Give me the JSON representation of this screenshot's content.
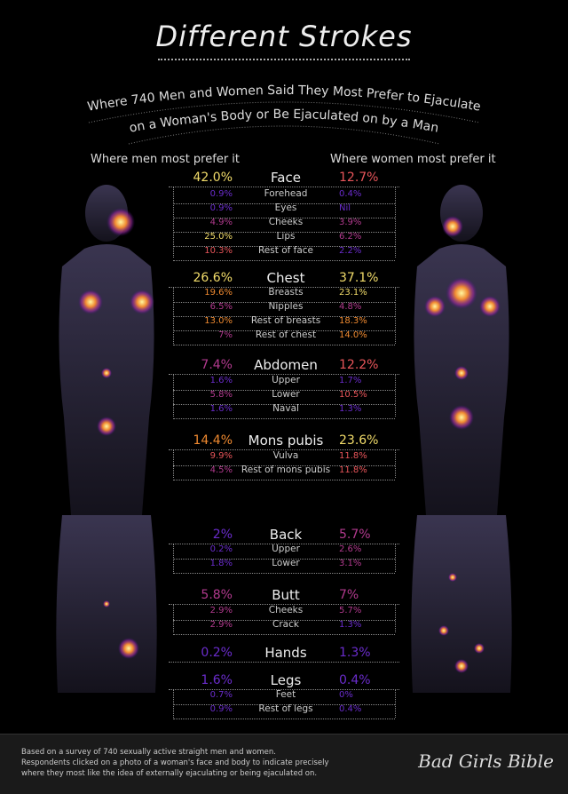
{
  "header": {
    "title": "Different Strokes",
    "subtitle_line1": "Where 740 Men and Women Said They Most Prefer to Ejaculate",
    "subtitle_line2": "on a Woman's Body or Be Ejaculated on by a Man"
  },
  "columns": {
    "men": "Where men most prefer it",
    "women": "Where women most prefer it"
  },
  "colors": {
    "low": "#6a2ccc",
    "mid": "#b23a8e",
    "high": "#e8555a",
    "higher": "#f08a30",
    "top": "#f2dc6a"
  },
  "chart_data": {
    "type": "table",
    "series": [
      {
        "name": "Where men most prefer it"
      },
      {
        "name": "Where women most prefer it"
      }
    ],
    "sections": [
      {
        "name": "Face",
        "men": "42.0%",
        "women": "12.7%",
        "sub": [
          {
            "label": "Forehead",
            "men": "0.9%",
            "women": "0.4%"
          },
          {
            "label": "Eyes",
            "men": "0.9%",
            "women": "Nil"
          },
          {
            "label": "Cheeks",
            "men": "4.9%",
            "women": "3.9%"
          },
          {
            "label": "Lips",
            "men": "25.0%",
            "women": "6.2%"
          },
          {
            "label": "Rest of face",
            "men": "10.3%",
            "women": "2.2%"
          }
        ]
      },
      {
        "name": "Chest",
        "men": "26.6%",
        "women": "37.1%",
        "sub": [
          {
            "label": "Breasts",
            "men": "19.6%",
            "women": "23.1%"
          },
          {
            "label": "Nipples",
            "men": "6.5%",
            "women": "4.8%"
          },
          {
            "label": "Rest of breasts",
            "men": "13.0%",
            "women": "18.3%"
          },
          {
            "label": "Rest of chest",
            "men": "7%",
            "women": "14.0%"
          }
        ]
      },
      {
        "name": "Abdomen",
        "men": "7.4%",
        "women": "12.2%",
        "sub": [
          {
            "label": "Upper",
            "men": "1.6%",
            "women": "1.7%"
          },
          {
            "label": "Lower",
            "men": "5.8%",
            "women": "10.5%"
          },
          {
            "label": "Naval",
            "men": "1.6%",
            "women": "1.3%"
          }
        ]
      },
      {
        "name": "Mons pubis",
        "men": "14.4%",
        "women": "23.6%",
        "sub": [
          {
            "label": "Vulva",
            "men": "9.9%",
            "women": "11.8%"
          },
          {
            "label": "Rest of mons pubis",
            "men": "4.5%",
            "women": "11.8%"
          }
        ]
      },
      {
        "name": "Back",
        "men": "2%",
        "women": "5.7%",
        "sub": [
          {
            "label": "Upper",
            "men": "0.2%",
            "women": "2.6%"
          },
          {
            "label": "Lower",
            "men": "1.8%",
            "women": "3.1%"
          }
        ]
      },
      {
        "name": "Butt",
        "men": "5.8%",
        "women": "7%",
        "sub": [
          {
            "label": "Cheeks",
            "men": "2.9%",
            "women": "5.7%"
          },
          {
            "label": "Crack",
            "men": "2.9%",
            "women": "1.3%"
          }
        ]
      },
      {
        "name": "Hands",
        "men": "0.2%",
        "women": "1.3%",
        "sub": []
      },
      {
        "name": "Legs",
        "men": "1.6%",
        "women": "0.4%",
        "sub": [
          {
            "label": "Feet",
            "men": "0.7%",
            "women": "0%"
          },
          {
            "label": "Rest of legs",
            "men": "0.9%",
            "women": "0.4%"
          }
        ]
      }
    ]
  },
  "footer": {
    "line1": "Based on a survey of 740 sexually active straight men and women.",
    "line2": "Respondents clicked on a photo of a woman's face and body to indicate precisely",
    "line3": "where they most like the idea of externally ejaculating or being ejaculated on.",
    "logo": "Bad Girls Bible"
  }
}
